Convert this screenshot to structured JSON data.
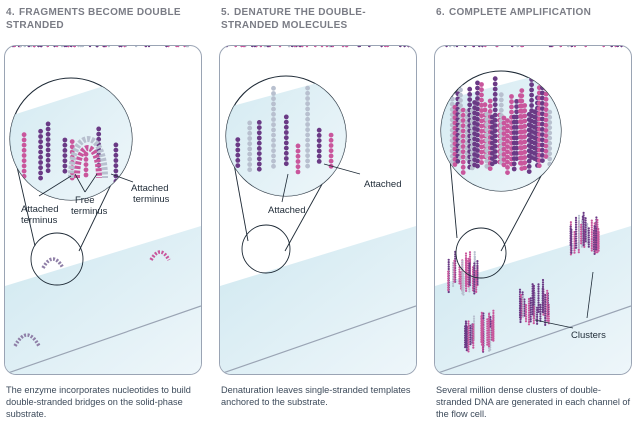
{
  "colors": {
    "title": "#7a7c85",
    "caption": "#3c4a5a",
    "strand_pink": "#c9569c",
    "strand_purple": "#6a3a85",
    "strand_gray": "#b8c0cf",
    "substrate_top": "#cfe8f0",
    "substrate_bottom": "#eef6fa",
    "label": "#1e2a36"
  },
  "panels": [
    {
      "number": "4.",
      "title": "FRAGMENTS BECOME DOUBLE STRANDED",
      "caption": "The enzyme incorporates nucleotides to build double-stranded bridges on the solid-phase substrate.",
      "labels": [
        "Attached terminus",
        "Free terminus",
        "Attached terminus"
      ]
    },
    {
      "number": "5.",
      "title": "DENATURE THE DOUBLE-STRANDED MOLECULES",
      "caption": "Denaturation leaves single-stranded templates anchored to the substrate.",
      "labels": [
        "Attached",
        "Attached"
      ]
    },
    {
      "number": "6.",
      "title": "COMPLETE AMPLIFICATION",
      "caption": "Several million dense clusters of double-stranded DNA are generated in each channel of the flow cell.",
      "labels": [
        "Clusters"
      ]
    }
  ]
}
